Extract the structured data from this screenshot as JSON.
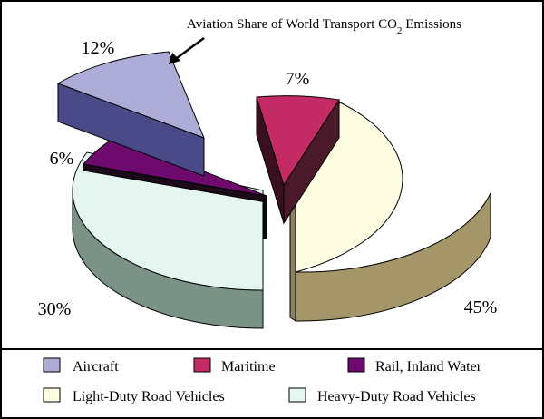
{
  "chart_data": {
    "type": "pie",
    "variant": "exploded-3d",
    "annotation": {
      "text_before": "Aviation Share of World Transport CO",
      "subscript": "2",
      "text_after": " Emissions",
      "points_to": "Aircraft"
    },
    "slices": [
      {
        "name": "Aircraft",
        "value": 12,
        "label": "12%",
        "color": "#acacd6",
        "side_color": "#4a4a88"
      },
      {
        "name": "Maritime",
        "value": 7,
        "label": "7%",
        "color": "#c42a63",
        "side_color": "#4a1a2a"
      },
      {
        "name": "Rail, Inland Water",
        "value": 6,
        "label": "6%",
        "color": "#6e0a6e",
        "side_color": "#1a0a1a"
      },
      {
        "name": "Light-Duty Road Vehicles",
        "value": 45,
        "label": "45%",
        "color": "#fefde2",
        "side_color": "#a49668"
      },
      {
        "name": "Heavy-Duty Road Vehicles",
        "value": 30,
        "label": "30%",
        "color": "#e5f6f1",
        "side_color": "#7b9387"
      }
    ]
  },
  "legend": {
    "items": [
      {
        "label": "Aircraft",
        "color": "#acacd6"
      },
      {
        "label": "Maritime",
        "color": "#c42a63"
      },
      {
        "label": "Rail, Inland Water",
        "color": "#6e0a6e"
      },
      {
        "label": "Light-Duty Road Vehicles",
        "color": "#fefde2"
      },
      {
        "label": "Heavy-Duty Road Vehicles",
        "color": "#e5f6f1"
      }
    ]
  }
}
